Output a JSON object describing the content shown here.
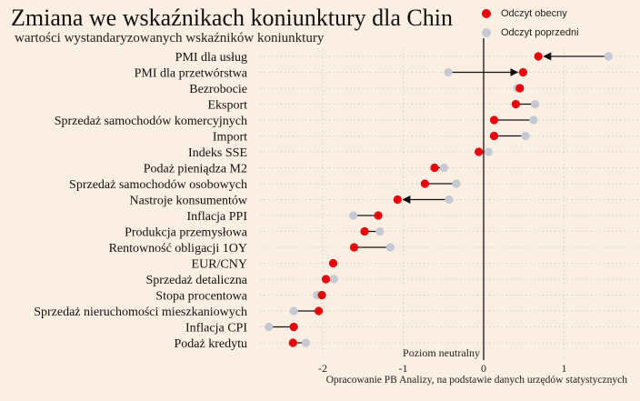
{
  "title": "Zmiana we wskaźnikach koniunktury dla Chin",
  "subtitle": "wartości wystandaryzowanych wskaźników koniunktury",
  "legend": {
    "current": "Odczyt obecny",
    "previous": "Odczyt poprzedni"
  },
  "colors": {
    "current": "#e8000b",
    "previous": "#c5c9d3",
    "background": "#fbeee2",
    "line": "#111111",
    "grid": "#cfc7bd"
  },
  "source": "Opracowanie PB Analizy, na podstawie danych urzędów statystycznych",
  "chart_data": {
    "type": "dumbbell",
    "xlim": [
      -2.55,
      1.6
    ],
    "xticks": [
      -2,
      -1,
      0,
      1
    ],
    "xtick_labels": [
      "-2",
      "-1",
      "0",
      "1"
    ],
    "reference_line": {
      "x": 0,
      "label": "Poziom neutralny"
    },
    "grid": true,
    "legend_position": "top-right",
    "series": [
      {
        "name": "Odczyt obecny"
      },
      {
        "name": "Odczyt poprzedni"
      }
    ],
    "categories": [
      "PMI dla usług",
      "PMI dla przetwórstwa",
      "Bezrobocie",
      "Eksport",
      "Sprzedaż samochodów komercyjnych",
      "Import",
      "Indeks SSE",
      "Podaż pieniądza M2",
      "Sprzedaż samochodów osobowych",
      "Nastroje konsumentów",
      "Inflacja PPI",
      "Produkcja przemysłowa",
      "Rentowność obligacji 1OY",
      "EUR/CNY",
      "Sprzedaż detaliczna",
      "Stopa procentowa",
      "Sprzedaż nieruchomości mieszkaniowych",
      "Inflacja CPI",
      "Podaż kredytu"
    ],
    "current": [
      0.68,
      0.49,
      0.45,
      0.4,
      0.13,
      0.13,
      -0.06,
      -0.61,
      -0.73,
      -1.07,
      -1.31,
      -1.48,
      -1.61,
      -1.87,
      -1.96,
      -2.01,
      -2.05,
      -2.36,
      -2.37
    ],
    "previous": [
      1.55,
      -0.44,
      0.42,
      0.64,
      0.62,
      0.52,
      0.06,
      -0.49,
      -0.34,
      -0.43,
      -1.62,
      -1.29,
      -1.16,
      -1.87,
      -1.86,
      -2.07,
      -2.36,
      -2.67,
      -2.21
    ],
    "arrows": [
      true,
      true,
      false,
      false,
      false,
      false,
      false,
      false,
      false,
      true,
      false,
      false,
      false,
      false,
      false,
      false,
      false,
      false,
      false
    ]
  }
}
